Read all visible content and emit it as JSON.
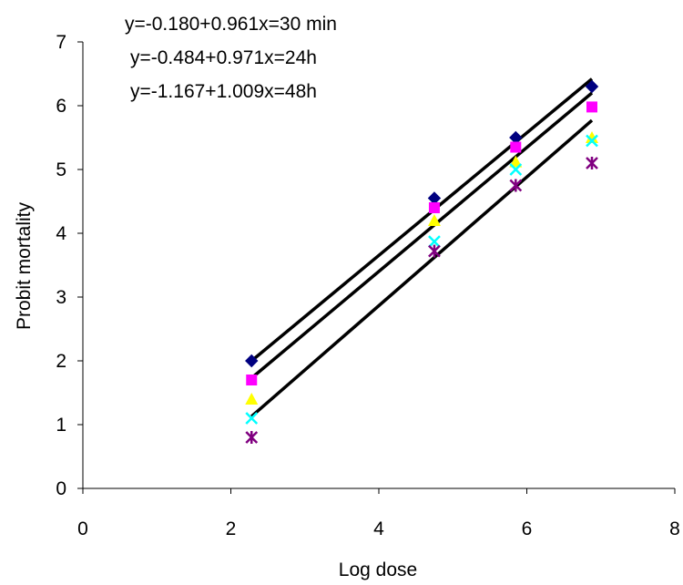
{
  "chart_data": {
    "type": "scatter",
    "title": "",
    "xlabel": "Log dose",
    "ylabel": "Probit mortality",
    "xlim": [
      0,
      8
    ],
    "ylim": [
      0,
      7
    ],
    "x_ticks": [
      "0",
      "2",
      "4",
      "6",
      "8"
    ],
    "y_ticks": [
      "0",
      "1",
      "2",
      "3",
      "4",
      "5",
      "6",
      "7"
    ],
    "grid": false,
    "legend": "none",
    "annotations": [
      "y=-0.180+0.961x=30 min",
      "y=-0.484+0.971x=24h",
      "y=-1.167+1.009x=48h"
    ],
    "series": [
      {
        "marker": "diamond",
        "color": "#000080",
        "x": [
          2.28,
          4.75,
          5.85,
          6.88
        ],
        "y": [
          2.0,
          4.55,
          5.5,
          6.3
        ]
      },
      {
        "marker": "square",
        "color": "#ff00ff",
        "x": [
          2.28,
          4.75,
          5.85,
          6.88
        ],
        "y": [
          1.7,
          4.4,
          5.35,
          5.98
        ]
      },
      {
        "marker": "triangle",
        "color": "#ffff00",
        "x": [
          2.28,
          4.75,
          5.85,
          6.88
        ],
        "y": [
          1.4,
          4.2,
          5.12,
          5.5
        ]
      },
      {
        "marker": "x",
        "color": "#00ffff",
        "x": [
          2.28,
          4.75,
          5.85,
          6.88
        ],
        "y": [
          1.1,
          3.87,
          5.0,
          5.45
        ]
      },
      {
        "marker": "star",
        "color": "#800080",
        "x": [
          2.28,
          4.75,
          5.85,
          6.88
        ],
        "y": [
          0.8,
          3.72,
          4.75,
          5.1
        ]
      }
    ],
    "fit_lines": [
      {
        "color": "#000000",
        "x": [
          2.28,
          6.88
        ],
        "y": [
          2.0,
          6.42
        ]
      },
      {
        "color": "#000000",
        "x": [
          2.28,
          6.88
        ],
        "y": [
          1.73,
          6.2
        ]
      },
      {
        "color": "#000000",
        "x": [
          2.28,
          6.88
        ],
        "y": [
          1.13,
          5.77
        ]
      }
    ]
  }
}
